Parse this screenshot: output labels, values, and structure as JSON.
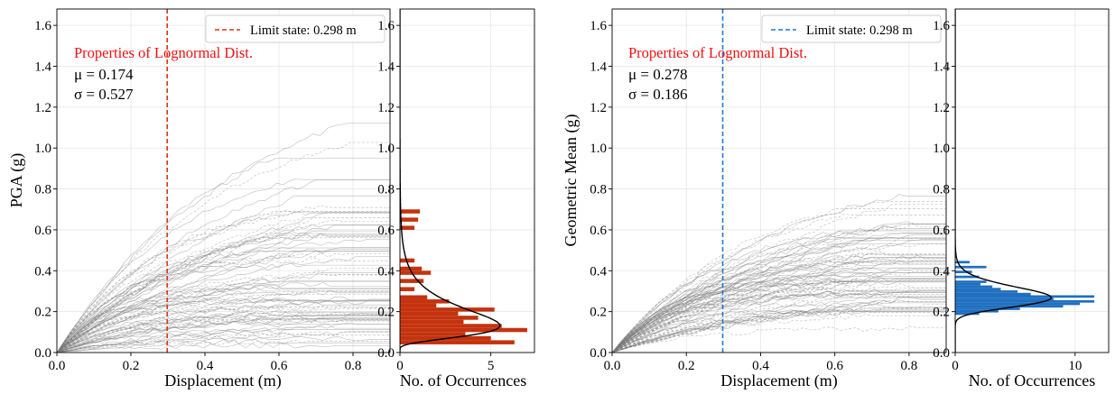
{
  "chart_data": [
    {
      "type": "line",
      "panel": "left-main",
      "xlabel": "Displacement (m)",
      "ylabel": "PGA (g)",
      "xlim": [
        0,
        0.9
      ],
      "ylim": [
        0,
        1.68
      ],
      "xticks": [
        "0.0",
        "0.2",
        "0.4",
        "0.6",
        "0.8"
      ],
      "yticks": [
        "0.0",
        "0.2",
        "0.4",
        "0.6",
        "0.8",
        "1.0",
        "1.2",
        "1.4",
        "1.6"
      ],
      "grid": true,
      "legend": {
        "position": "top-right",
        "entries": [
          "Limit state: 0.298 m"
        ]
      },
      "limit_state": {
        "x": 0.298,
        "color": "#dd3311"
      },
      "annotation": {
        "title": "Properties of Lognormal Dist.",
        "mu": "μ = 0.174",
        "sigma": "σ = 0.527"
      },
      "curve_count": 80,
      "curve_color": "#808080"
    },
    {
      "type": "bar",
      "orientation": "horizontal",
      "panel": "left-hist",
      "xlabel": "No. of Occurrences",
      "xlim": [
        0,
        7.4
      ],
      "ylim": [
        0,
        1.68
      ],
      "xticks": [
        "0",
        "5"
      ],
      "yticks": [
        "0.0",
        "0.2",
        "0.4",
        "0.6",
        "0.8",
        "1.0",
        "1.2",
        "1.4",
        "1.6"
      ],
      "bar_color": "#c4330e",
      "bin_width": 0.02,
      "bins": [
        {
          "y": 0.05,
          "count": 6.3
        },
        {
          "y": 0.07,
          "count": 5.0
        },
        {
          "y": 0.09,
          "count": 3.6
        },
        {
          "y": 0.11,
          "count": 7.0
        },
        {
          "y": 0.13,
          "count": 5.6
        },
        {
          "y": 0.15,
          "count": 3.5
        },
        {
          "y": 0.17,
          "count": 4.3
        },
        {
          "y": 0.19,
          "count": 3.2
        },
        {
          "y": 0.21,
          "count": 5.2
        },
        {
          "y": 0.23,
          "count": 2.0
        },
        {
          "y": 0.25,
          "count": 2.7
        },
        {
          "y": 0.27,
          "count": 1.5
        },
        {
          "y": 0.31,
          "count": 0.8
        },
        {
          "y": 0.35,
          "count": 1.3
        },
        {
          "y": 0.39,
          "count": 1.7
        },
        {
          "y": 0.41,
          "count": 1.2
        },
        {
          "y": 0.45,
          "count": 0.8
        },
        {
          "y": 0.61,
          "count": 0.8
        },
        {
          "y": 0.65,
          "count": 1.0
        },
        {
          "y": 0.69,
          "count": 1.1
        }
      ],
      "fit": {
        "mu": 0.174,
        "sigma": 0.527,
        "peak_count": 5.5
      }
    },
    {
      "type": "line",
      "panel": "right-main",
      "xlabel": "Displacement (m)",
      "ylabel": "Geometric Mean (g)",
      "xlim": [
        0,
        0.9
      ],
      "ylim": [
        0,
        1.68
      ],
      "xticks": [
        "0.0",
        "0.2",
        "0.4",
        "0.6",
        "0.8"
      ],
      "yticks": [
        "0.0",
        "0.2",
        "0.4",
        "0.6",
        "0.8",
        "1.0",
        "1.2",
        "1.4",
        "1.6"
      ],
      "grid": true,
      "legend": {
        "position": "top-right",
        "entries": [
          "Limit state: 0.298 m"
        ]
      },
      "limit_state": {
        "x": 0.298,
        "color": "#1f77d4"
      },
      "annotation": {
        "title": "Properties of Lognormal Dist.",
        "mu": "μ = 0.278",
        "sigma": "σ = 0.186"
      },
      "curve_count": 80,
      "curve_color": "#808080"
    },
    {
      "type": "bar",
      "orientation": "horizontal",
      "panel": "right-hist",
      "xlabel": "No. of Occurrences",
      "xlim": [
        0,
        12.8
      ],
      "ylim": [
        0,
        1.68
      ],
      "xticks": [
        "0",
        "10"
      ],
      "yticks": [
        "0.0",
        "0.2",
        "0.4",
        "0.6",
        "0.8",
        "1.0",
        "1.2",
        "1.4",
        "1.6"
      ],
      "bar_color": "#1f6fc0",
      "bin_width": 0.012,
      "bins": [
        {
          "y": 0.19,
          "count": 2.0
        },
        {
          "y": 0.202,
          "count": 3.6
        },
        {
          "y": 0.214,
          "count": 5.4
        },
        {
          "y": 0.226,
          "count": 9.0
        },
        {
          "y": 0.238,
          "count": 10.4
        },
        {
          "y": 0.25,
          "count": 11.6
        },
        {
          "y": 0.262,
          "count": 8.2
        },
        {
          "y": 0.274,
          "count": 11.6
        },
        {
          "y": 0.286,
          "count": 6.3
        },
        {
          "y": 0.298,
          "count": 5.2
        },
        {
          "y": 0.31,
          "count": 3.8
        },
        {
          "y": 0.322,
          "count": 3.1
        },
        {
          "y": 0.334,
          "count": 2.1
        },
        {
          "y": 0.346,
          "count": 2.6
        },
        {
          "y": 0.37,
          "count": 2.0
        },
        {
          "y": 0.394,
          "count": 1.4
        },
        {
          "y": 0.418,
          "count": 2.6
        },
        {
          "y": 0.442,
          "count": 1.2
        }
      ],
      "fit": {
        "mu": 0.278,
        "sigma": 0.186,
        "peak_count": 8.0
      }
    }
  ]
}
